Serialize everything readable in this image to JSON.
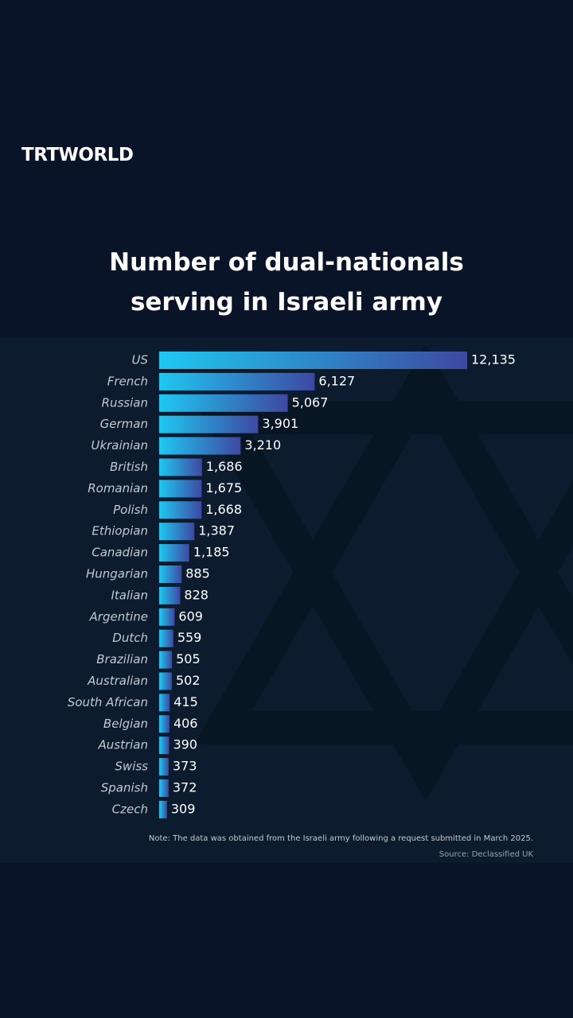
{
  "header": {
    "logo": "TRTWORLD"
  },
  "chart_data": {
    "type": "hbar",
    "title": "Number of dual-nationals serving in Israeli army",
    "categories": [
      "US",
      "French",
      "Russian",
      "German",
      "Ukrainian",
      "British",
      "Romanian",
      "Polish",
      "Ethiopian",
      "Canadian",
      "Hungarian",
      "Italian",
      "Argentine",
      "Dutch",
      "Brazilian",
      "Australian",
      "South African",
      "Belgian",
      "Austrian",
      "Swiss",
      "Spanish",
      "Czech"
    ],
    "values": [
      12135,
      6127,
      5067,
      3901,
      3210,
      1686,
      1675,
      1668,
      1387,
      1185,
      885,
      828,
      609,
      559,
      505,
      502,
      415,
      406,
      390,
      373,
      372,
      309
    ],
    "value_labels": [
      "12,135",
      "6,127",
      "5,067",
      "3,901",
      "3,210",
      "1,686",
      "1,675",
      "1,668",
      "1,387",
      "1,185",
      "885",
      "828",
      "609",
      "559",
      "505",
      "502",
      "415",
      "406",
      "390",
      "373",
      "372",
      "309"
    ],
    "color": [
      "#1fc8f1",
      "#3e48a2"
    ],
    "note": "Note: The data was obtained from the Israeli army following a request submitted in March 2025.",
    "source": "Source: Declassified UK"
  }
}
